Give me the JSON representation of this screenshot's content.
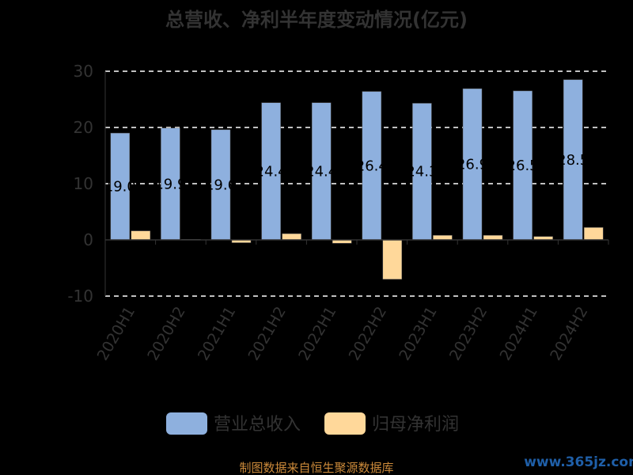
{
  "chart_data": {
    "type": "bar",
    "title": "总营收、净利半年度变动情况(亿元)",
    "categories": [
      "2020H1",
      "2020H2",
      "2021H1",
      "2021H2",
      "2022H1",
      "2022H2",
      "2023H1",
      "2023H2",
      "2024H1",
      "2024H2"
    ],
    "series": [
      {
        "name": "营业总收入",
        "color": "#8eb0de",
        "values": [
          19.0,
          19.9,
          19.6,
          24.4,
          24.4,
          26.4,
          24.3,
          26.9,
          26.5,
          28.5
        ],
        "labels": [
          "19.0",
          "19.9",
          "19.6",
          "24.4",
          "24.4",
          "26.4",
          "24.3",
          "26.9",
          "26.5",
          "28.5"
        ]
      },
      {
        "name": "归母净利润",
        "color": "#ffd89a",
        "values": [
          1.6,
          0.1,
          -0.5,
          1.1,
          -0.6,
          -7.0,
          0.8,
          0.8,
          0.6,
          2.2
        ]
      }
    ],
    "ylim": [
      -10,
      30
    ],
    "yticks": [
      30,
      20,
      10,
      0,
      -10
    ],
    "grid": true,
    "legend_position": "bottom"
  },
  "footer": {
    "source": "制图数据来自恒生聚源数据库",
    "watermark": "www.365jz.com"
  }
}
